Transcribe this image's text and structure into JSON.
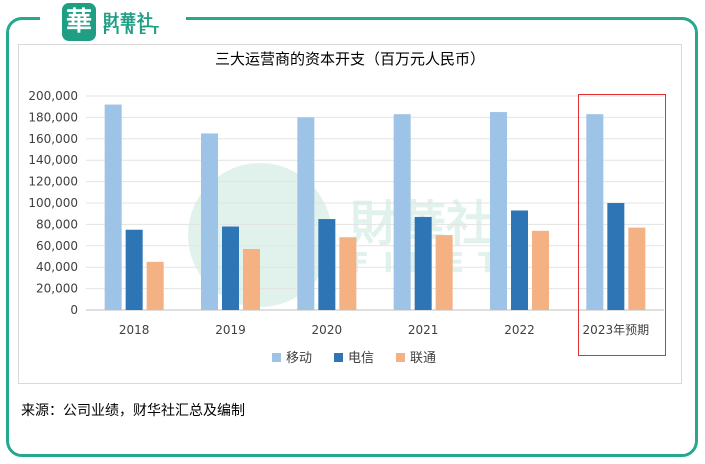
{
  "logo": {
    "mark": "華",
    "cn": "財華社",
    "en": "FINET"
  },
  "watermark": {
    "cn": "財華社",
    "en": "FINET"
  },
  "source_note": "来源：公司业绩，财华社汇总及编制",
  "colors": {
    "frame": "#26a88f",
    "highlight_box": "#e03030"
  },
  "chart_data": {
    "type": "bar",
    "title": "三大运营商的资本开支（百万元人民币）",
    "categories": [
      "2018",
      "2019",
      "2020",
      "2021",
      "2022",
      "2023年预期"
    ],
    "series": [
      {
        "name": "移动",
        "color": "#9dc3e6",
        "values": [
          192000,
          165000,
          180000,
          183000,
          185000,
          183000
        ]
      },
      {
        "name": "电信",
        "color": "#2e75b6",
        "values": [
          75000,
          78000,
          85000,
          87000,
          93000,
          100000
        ]
      },
      {
        "name": "联通",
        "color": "#f4b183",
        "values": [
          45000,
          57000,
          68000,
          70000,
          74000,
          77000
        ]
      }
    ],
    "ylim": [
      0,
      200000
    ],
    "y_ticks": [
      "0",
      "20,000",
      "40,000",
      "60,000",
      "80,000",
      "100,000",
      "120,000",
      "140,000",
      "160,000",
      "180,000",
      "200,000"
    ],
    "y_tick_values": [
      0,
      20000,
      40000,
      60000,
      80000,
      100000,
      120000,
      140000,
      160000,
      180000,
      200000
    ],
    "grid": true,
    "legend": "bottom"
  }
}
